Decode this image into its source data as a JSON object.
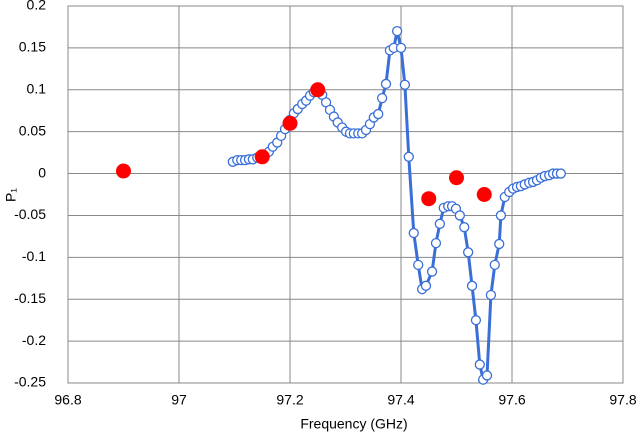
{
  "chart_data": {
    "type": "scatter",
    "xlabel": "Frequency (GHz)",
    "ylabel": "P₁",
    "xlim": [
      96.8,
      97.8
    ],
    "xticks": [
      96.8,
      97,
      97.2,
      97.4,
      97.6,
      97.8
    ],
    "ylim": [
      -0.25,
      0.2
    ],
    "yticks": [
      0.2,
      0.15,
      0.1,
      0.05,
      0,
      -0.05,
      -0.1,
      -0.15,
      -0.2,
      -0.25
    ],
    "grid": true,
    "series": [
      {
        "color": "#3a6fd8",
        "line": true,
        "marker": "open",
        "x": [
          97.097,
          97.105,
          97.112,
          97.119,
          97.126,
          97.133,
          97.141,
          97.148,
          97.155,
          97.162,
          97.169,
          97.177,
          97.184,
          97.191,
          97.2,
          97.207,
          97.214,
          97.222,
          97.229,
          97.236,
          97.243,
          97.25,
          97.258,
          97.265,
          97.272,
          97.279,
          97.286,
          97.294,
          97.301,
          97.308,
          97.315,
          97.323,
          97.33,
          97.337,
          97.344,
          97.351,
          97.359,
          97.366,
          97.373,
          97.38,
          97.387,
          97.393,
          97.4,
          97.407,
          97.414,
          97.423,
          97.431,
          97.438,
          97.445,
          97.456,
          97.463,
          97.47,
          97.477,
          97.485,
          97.492,
          97.499,
          97.506,
          97.514,
          97.521,
          97.528,
          97.535,
          97.542,
          97.548,
          97.555,
          97.562,
          97.569,
          97.577,
          97.58,
          97.587,
          97.595,
          97.602,
          97.609,
          97.616,
          97.623,
          97.631,
          97.638,
          97.645,
          97.652,
          97.659,
          97.667,
          97.674,
          97.681,
          97.688
        ],
        "values": [
          0.014,
          0.016,
          0.016,
          0.016,
          0.017,
          0.017,
          0.019,
          0.02,
          0.022,
          0.026,
          0.032,
          0.037,
          0.045,
          0.053,
          0.064,
          0.072,
          0.077,
          0.083,
          0.087,
          0.093,
          0.097,
          0.1,
          0.094,
          0.085,
          0.076,
          0.068,
          0.061,
          0.055,
          0.05,
          0.048,
          0.048,
          0.048,
          0.048,
          0.052,
          0.059,
          0.067,
          0.071,
          0.09,
          0.107,
          0.147,
          0.15,
          0.17,
          0.15,
          0.106,
          0.02,
          -0.071,
          -0.109,
          -0.138,
          -0.134,
          -0.117,
          -0.083,
          -0.06,
          -0.041,
          -0.039,
          -0.039,
          -0.042,
          -0.05,
          -0.064,
          -0.094,
          -0.134,
          -0.175,
          -0.228,
          -0.246,
          -0.241,
          -0.145,
          -0.109,
          -0.084,
          -0.05,
          -0.028,
          -0.022,
          -0.018,
          -0.016,
          -0.015,
          -0.013,
          -0.011,
          -0.01,
          -0.008,
          -0.005,
          -0.003,
          -0.002,
          0,
          0,
          0
        ]
      },
      {
        "color": "#ff0000",
        "line": false,
        "marker": "filled",
        "x": [
          96.9,
          97.15,
          97.2,
          97.25,
          97.45,
          97.5,
          97.55
        ],
        "values": [
          0.003,
          0.02,
          0.06,
          0.1,
          -0.03,
          -0.005,
          -0.025
        ]
      }
    ]
  }
}
